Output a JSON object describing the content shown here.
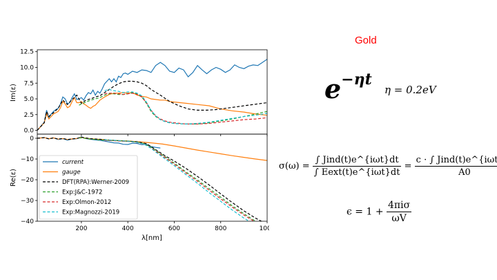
{
  "title": "Gold",
  "formulas": {
    "exponential_base": "e",
    "exponential_power": "−ηt",
    "eta": "η = 0.2eV",
    "sigma_lhs": "σ(ω) =",
    "sigma_num1": "∫ Jind(t)e^{iωt}dt",
    "sigma_den1": "∫ Eext(t)e^{iωt}dt",
    "sigma_eq": "=",
    "sigma_num2": "c · ∫ Jind(t)e^{iωt}dt",
    "sigma_den2": "A0",
    "epsilon_lhs": "ϵ = 1 +",
    "epsilon_num": "4πiσ",
    "epsilon_den": "ωV"
  },
  "chart_data": [
    {
      "type": "line",
      "panel": "top",
      "ylabel": "Im(ε)",
      "xlim": [
        10,
        1000
      ],
      "ylim": [
        -0.6,
        12.8
      ],
      "yticks": [
        "0.0",
        "2.5",
        "5.0",
        "7.5",
        "10.0",
        "12.5"
      ],
      "ytick_values": [
        0,
        2.5,
        5,
        7.5,
        10,
        12.5
      ],
      "series": [
        {
          "name": "current",
          "color": "#1f77b4",
          "dash": "solid",
          "x": [
            10,
            40,
            50,
            60,
            70,
            80,
            90,
            100,
            110,
            120,
            130,
            140,
            150,
            160,
            170,
            180,
            190,
            200,
            210,
            220,
            230,
            240,
            250,
            260,
            270,
            280,
            290,
            300,
            310,
            320,
            330,
            340,
            350,
            360,
            370,
            380,
            390,
            400,
            420,
            440,
            460,
            480,
            500,
            520,
            540,
            560,
            580,
            600,
            620,
            640,
            660,
            680,
            700,
            720,
            740,
            760,
            780,
            800,
            820,
            840,
            860,
            880,
            900,
            920,
            940,
            960,
            980,
            1000
          ],
          "y": [
            0,
            1.3,
            3.2,
            2.0,
            2.6,
            3.0,
            3.3,
            3.5,
            4.2,
            5.3,
            5.0,
            4.2,
            4.4,
            5.2,
            5.8,
            4.9,
            5.0,
            5.2,
            4.8,
            5.5,
            6.0,
            5.8,
            6.4,
            5.6,
            6.2,
            5.9,
            6.6,
            7.4,
            7.8,
            8.2,
            7.7,
            8.2,
            7.7,
            8.6,
            8.4,
            9.0,
            9.1,
            8.9,
            9.4,
            9.2,
            9.6,
            9.5,
            9.2,
            10.3,
            10.8,
            10.3,
            9.4,
            9.2,
            9.9,
            9.6,
            8.5,
            9.2,
            10.3,
            9.6,
            9.0,
            9.6,
            10.0,
            9.7,
            9.2,
            9.6,
            10.4,
            10.0,
            9.8,
            10.2,
            10.4,
            10.3,
            10.8,
            11.3
          ]
        },
        {
          "name": "gauge",
          "color": "#ff7f0e",
          "dash": "solid",
          "x": [
            10,
            40,
            50,
            60,
            70,
            80,
            90,
            100,
            110,
            120,
            130,
            140,
            150,
            160,
            170,
            180,
            190,
            200,
            210,
            220,
            230,
            240,
            250,
            260,
            280,
            300,
            320,
            340,
            360,
            380,
            400,
            420,
            440,
            460,
            480,
            500,
            520,
            540,
            560,
            580,
            600,
            650,
            700,
            750,
            800,
            850,
            900,
            950,
            1000
          ],
          "y": [
            0,
            1.2,
            2.6,
            1.8,
            2.2,
            2.6,
            2.8,
            3.0,
            3.6,
            4.6,
            4.2,
            3.6,
            3.8,
            4.6,
            5.2,
            4.4,
            4.4,
            4.6,
            4.2,
            4.0,
            3.7,
            3.5,
            3.8,
            4.0,
            4.8,
            5.3,
            5.7,
            5.9,
            5.9,
            6.0,
            5.9,
            6.0,
            5.6,
            5.4,
            5.3,
            5.0,
            4.9,
            4.8,
            4.8,
            4.6,
            4.5,
            4.3,
            4.1,
            3.9,
            3.4,
            3.1,
            2.9,
            2.6,
            2.4
          ]
        },
        {
          "name": "DFT(RPA):Werner-2009",
          "color": "#000000",
          "dash": "dashed",
          "x": [
            10,
            40,
            50,
            60,
            80,
            100,
            120,
            140,
            160,
            180,
            200,
            220,
            240,
            260,
            280,
            300,
            320,
            340,
            360,
            380,
            400,
            420,
            440,
            460,
            480,
            500,
            540,
            580,
            620,
            660,
            700,
            740,
            780,
            820,
            860,
            900,
            940,
            980,
            1000
          ],
          "y": [
            0,
            1.2,
            3.0,
            2.2,
            2.8,
            3.5,
            4.8,
            4.1,
            4.9,
            5.6,
            4.3,
            4.8,
            5.0,
            5.3,
            5.5,
            6.0,
            6.5,
            7.0,
            7.4,
            7.7,
            7.8,
            7.8,
            7.7,
            7.5,
            7.1,
            6.5,
            5.6,
            4.6,
            3.9,
            3.4,
            3.2,
            3.2,
            3.3,
            3.5,
            3.7,
            3.9,
            4.1,
            4.3,
            4.4
          ]
        },
        {
          "name": "Exp:J&C-1972",
          "color": "#2ca02c",
          "dash": "dashed",
          "x": [
            190,
            200,
            220,
            240,
            260,
            280,
            300,
            320,
            340,
            360,
            380,
            400,
            420,
            440,
            460,
            480,
            500,
            520,
            540,
            560,
            580,
            600,
            650,
            700,
            750,
            800,
            850,
            900,
            950,
            1000
          ],
          "y": [
            4.0,
            4.2,
            4.5,
            4.8,
            5.0,
            5.2,
            5.6,
            5.8,
            5.8,
            5.7,
            5.7,
            5.8,
            6.0,
            5.8,
            5.3,
            4.3,
            3.0,
            2.2,
            1.7,
            1.4,
            1.2,
            1.1,
            1.0,
            1.0,
            1.2,
            1.5,
            1.8,
            2.2,
            2.6,
            3.0
          ]
        },
        {
          "name": "Exp:Olmon-2012",
          "color": "#d62728",
          "dash": "dashed",
          "x": [
            300,
            320,
            340,
            360,
            380,
            400,
            420,
            440,
            460,
            480,
            500,
            520,
            540,
            560,
            580,
            600,
            650,
            700,
            750,
            800,
            850,
            900,
            950,
            1000
          ],
          "y": [
            5.8,
            5.9,
            5.9,
            5.8,
            5.7,
            5.8,
            5.9,
            5.7,
            5.3,
            4.4,
            3.2,
            2.3,
            1.8,
            1.5,
            1.3,
            1.2,
            1.0,
            1.0,
            1.1,
            1.3,
            1.5,
            1.7,
            1.8,
            2.0
          ]
        },
        {
          "name": "Exp:Magnozzi-2019",
          "color": "#17becf",
          "dash": "dashed",
          "x": [
            300,
            320,
            340,
            360,
            380,
            400,
            420,
            440,
            460,
            480,
            500,
            520,
            540,
            560,
            580,
            600,
            650,
            700,
            750,
            800,
            850,
            900,
            950,
            1000
          ],
          "y": [
            6.3,
            6.5,
            6.3,
            6.2,
            6.0,
            6.1,
            6.1,
            5.9,
            5.5,
            4.5,
            3.2,
            2.3,
            1.7,
            1.4,
            1.2,
            1.1,
            1.0,
            1.1,
            1.3,
            1.6,
            1.9,
            2.2,
            2.4,
            2.7
          ]
        }
      ]
    },
    {
      "type": "line",
      "panel": "bottom",
      "ylabel": "Re(ε)",
      "xlabel": "λ[nm]",
      "xlim": [
        10,
        1000
      ],
      "ylim": [
        -40,
        2
      ],
      "xticks": [
        "200",
        "400",
        "600",
        "800",
        "1000"
      ],
      "xtick_values": [
        200,
        400,
        600,
        800,
        1000
      ],
      "yticks": [
        "0",
        "−10",
        "−20",
        "−30",
        "−40"
      ],
      "ytick_values": [
        0,
        -10,
        -20,
        -30,
        -40
      ],
      "legend_position": "lower-left",
      "series": [
        {
          "name": "current",
          "color": "#1f77b4",
          "dash": "solid",
          "x": [
            10,
            40,
            60,
            80,
            100,
            120,
            140,
            160,
            180,
            200,
            220,
            240,
            260,
            280,
            300,
            320,
            340,
            360,
            380,
            400,
            420,
            440,
            460,
            480,
            500,
            520,
            540
          ],
          "y": [
            0,
            0.4,
            -0.3,
            0.2,
            -0.6,
            -0.2,
            -0.9,
            -0.4,
            -0.2,
            0.7,
            -0.2,
            -0.5,
            -0.8,
            -1.0,
            -1.4,
            -1.8,
            -2.2,
            -2.3,
            -2.9,
            -3.0,
            -2.4,
            -2.5,
            -3.1,
            -2.9,
            -4.0,
            -4.4,
            -4.7
          ]
        },
        {
          "name": "gauge",
          "color": "#ff7f0e",
          "dash": "solid",
          "x": [
            10,
            40,
            60,
            80,
            100,
            120,
            140,
            160,
            180,
            200,
            220,
            240,
            260,
            280,
            300,
            320,
            340,
            360,
            380,
            400,
            450,
            500,
            550,
            600,
            650,
            700,
            750,
            800,
            850,
            900,
            950,
            1000
          ],
          "y": [
            0,
            0.3,
            -0.2,
            0.2,
            -0.4,
            -0.1,
            -0.6,
            -0.3,
            -0.1,
            0.5,
            0.0,
            -0.2,
            -0.4,
            -0.5,
            -0.7,
            -0.9,
            -1.0,
            -1.1,
            -1.2,
            -1.3,
            -1.7,
            -2.2,
            -2.8,
            -3.7,
            -4.7,
            -5.7,
            -6.6,
            -7.5,
            -8.4,
            -9.2,
            -10.0,
            -10.7
          ]
        },
        {
          "name": "DFT(RPA):Werner-2009",
          "color": "#000000",
          "dash": "dashed",
          "x": [
            10,
            40,
            60,
            80,
            100,
            120,
            140,
            160,
            180,
            200,
            240,
            280,
            320,
            360,
            400,
            440,
            480,
            500,
            520,
            560,
            600,
            650,
            700,
            750,
            800,
            850,
            900,
            950,
            1000
          ],
          "y": [
            0,
            0.3,
            -0.3,
            0.2,
            -0.4,
            -0.1,
            -0.6,
            -0.3,
            -0.1,
            0.5,
            -0.2,
            -0.5,
            -0.9,
            -1.2,
            -1.4,
            -1.7,
            -2.6,
            -4.0,
            -5.5,
            -8.4,
            -11.0,
            -14.5,
            -18.4,
            -22.5,
            -26.8,
            -31.0,
            -35.0,
            -38.5,
            -41.5
          ]
        },
        {
          "name": "Exp:J&C-1972",
          "color": "#2ca02c",
          "dash": "dashed",
          "x": [
            190,
            200,
            240,
            280,
            320,
            360,
            400,
            440,
            470,
            500,
            520,
            560,
            600,
            650,
            700,
            750,
            800,
            850,
            900,
            950,
            1000
          ],
          "y": [
            0.1,
            0.2,
            -0.4,
            -0.8,
            -1.0,
            -1.2,
            -1.4,
            -1.8,
            -2.6,
            -4.3,
            -5.8,
            -8.9,
            -12.0,
            -16.2,
            -20.1,
            -24.3,
            -28.4,
            -32.6,
            -36.4,
            -40.0,
            -43.5
          ]
        },
        {
          "name": "Exp:Olmon-2012",
          "color": "#d62728",
          "dash": "dashed",
          "x": [
            300,
            320,
            360,
            400,
            440,
            470,
            500,
            520,
            560,
            600,
            650,
            700,
            750,
            800,
            850,
            900,
            950,
            1000
          ],
          "y": [
            -1.0,
            -1.1,
            -1.3,
            -1.5,
            -2.0,
            -2.8,
            -4.6,
            -6.2,
            -9.3,
            -12.5,
            -16.7,
            -20.7,
            -25.0,
            -29.2,
            -33.2,
            -37.0,
            -40.5,
            -44.0
          ]
        },
        {
          "name": "Exp:Magnozzi-2019",
          "color": "#17becf",
          "dash": "dashed",
          "x": [
            300,
            320,
            360,
            400,
            440,
            470,
            500,
            520,
            560,
            600,
            650,
            700,
            750,
            800,
            850,
            900,
            950,
            1000
          ],
          "y": [
            -0.8,
            -0.9,
            -1.1,
            -1.4,
            -1.9,
            -2.8,
            -4.8,
            -6.6,
            -9.9,
            -13.2,
            -17.5,
            -21.7,
            -26.2,
            -30.4,
            -34.6,
            -38.5,
            -42.0,
            -45.5
          ]
        }
      ]
    }
  ]
}
